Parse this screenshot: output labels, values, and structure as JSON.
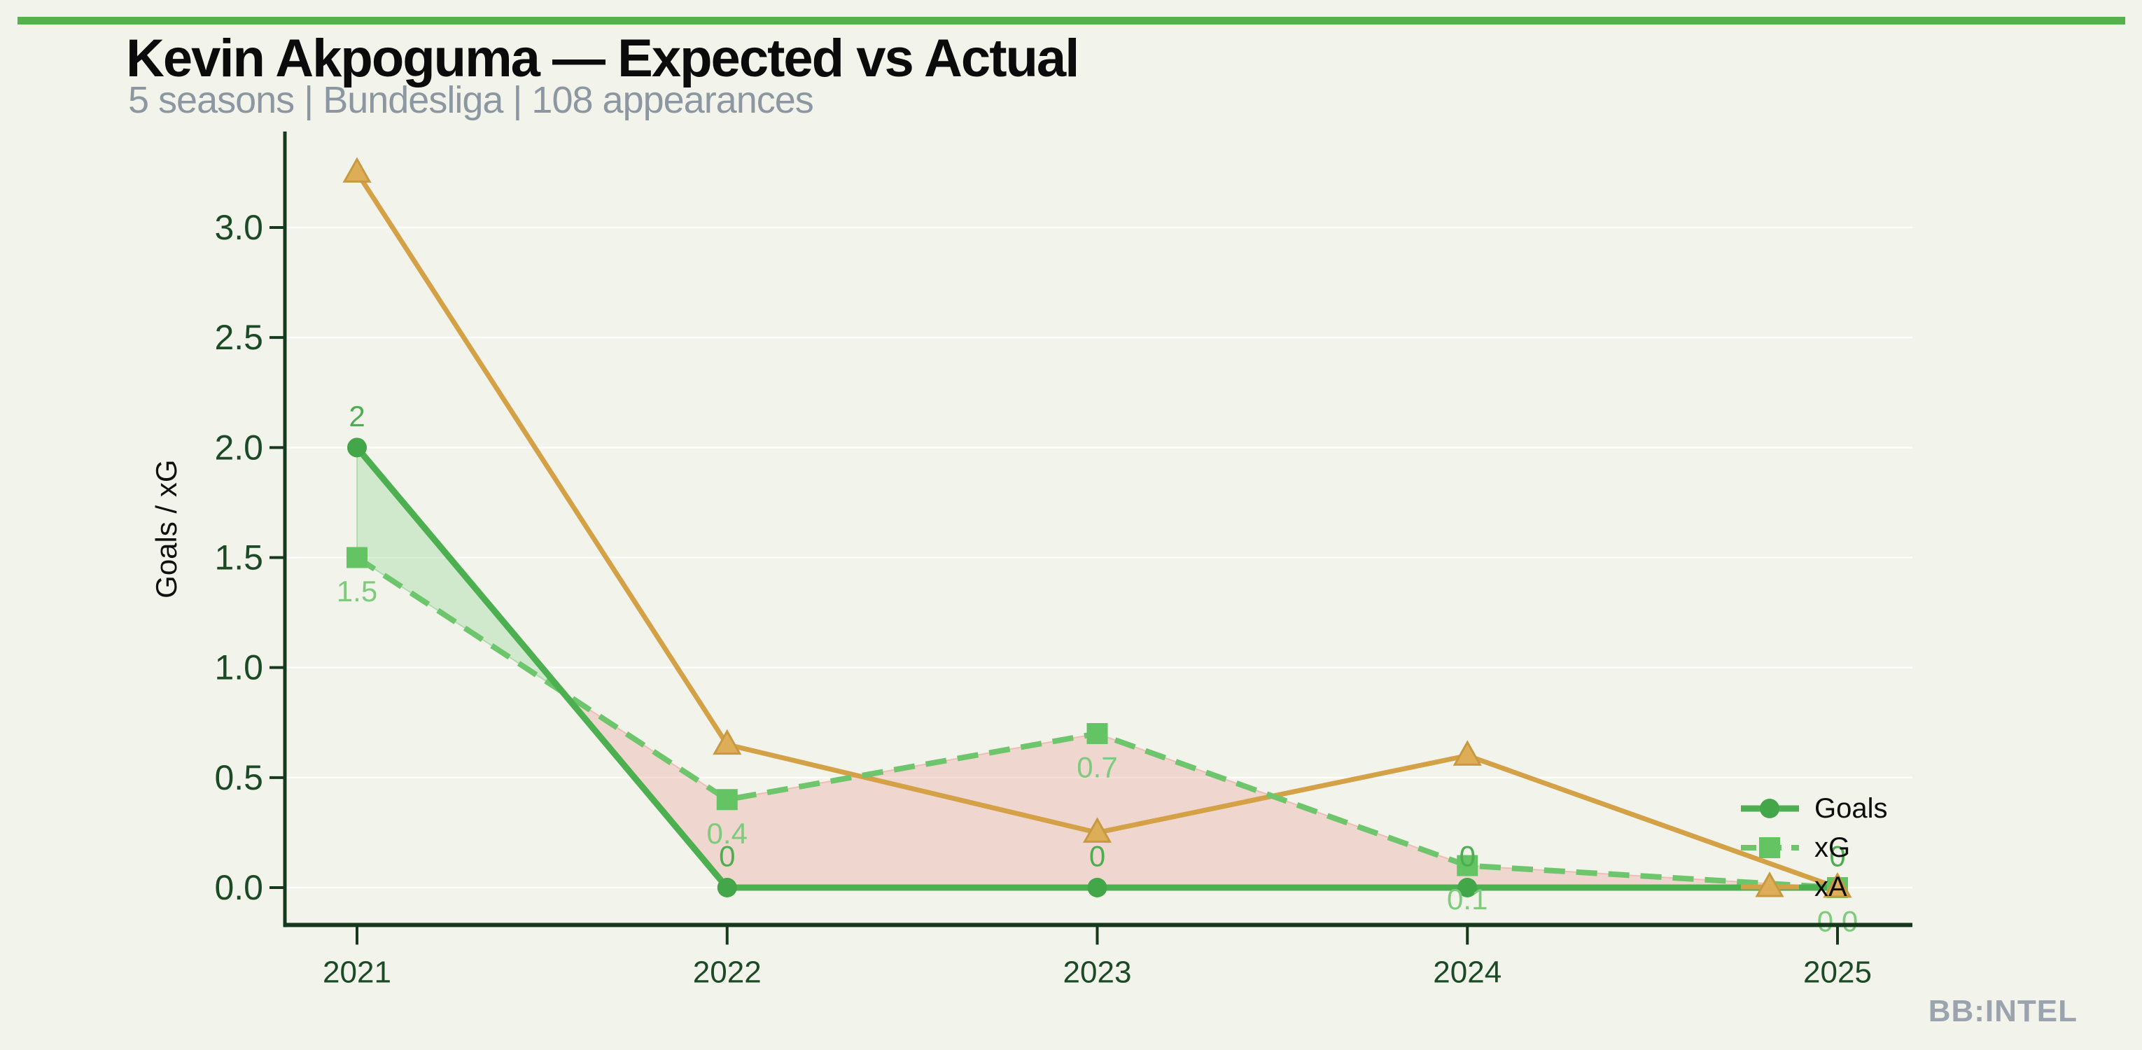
{
  "header": {
    "title": "Kevin Akpoguma — Expected vs Actual",
    "subtitle": "5 seasons | Bundesliga | 108 appearances"
  },
  "watermark": "BB:INTEL",
  "theme": {
    "background": "#f2f3eb",
    "top_bar": "#55b14c",
    "axis": "#16381c",
    "tick_label": "#1d4a26",
    "grid": "rgba(255,255,255,0.85)",
    "subtitle_color": "#8d97a2"
  },
  "chart_data": {
    "type": "line",
    "title": "Kevin Akpoguma — Expected vs Actual",
    "subtitle": "5 seasons | Bundesliga | 108 appearances",
    "x": [
      2021,
      2022,
      2023,
      2024,
      2025
    ],
    "xlabel": "",
    "ylabel": "Goals / xG",
    "yticks": [
      0.0,
      0.5,
      1.0,
      1.5,
      2.0,
      2.5,
      3.0
    ],
    "ylim": [
      -0.17,
      3.43
    ],
    "grid": true,
    "series": [
      {
        "name": "Goals",
        "values": [
          2,
          0,
          0,
          0,
          0
        ],
        "labels": [
          "2",
          "0",
          "0",
          "0",
          "0"
        ],
        "color": "#4caf50",
        "marker_color": "#43a648",
        "label_color": "#4cae50",
        "marker": "circle",
        "line_style": "solid"
      },
      {
        "name": "xG",
        "values": [
          1.5,
          0.4,
          0.7,
          0.1,
          0.0
        ],
        "labels": [
          "1.5",
          "0.4",
          "0.7",
          "0.1",
          "0.0"
        ],
        "color": "#6ec66c",
        "marker_color": "#64c463",
        "label_color": "#7ecb7d",
        "marker": "square",
        "line_style": "dashed"
      },
      {
        "name": "xA",
        "values": [
          3.25,
          0.65,
          0.25,
          0.6,
          0.0
        ],
        "labels": null,
        "color": "#d4a147",
        "marker_color": "#ddad58",
        "marker_edge": "#c79a41",
        "marker": "triangle",
        "line_style": "solid"
      }
    ],
    "diff_fill": {
      "between": [
        "Goals",
        "xG"
      ],
      "above_color": "rgba(109,198,109,0.25)",
      "above_edge": "rgba(109,198,109,0.40)",
      "below_color": "rgba(233,139,133,0.28)",
      "below_edge": "rgba(236,160,153,0.55)"
    },
    "legend": {
      "entries": [
        "Goals",
        "xG",
        "xA"
      ],
      "position": "right",
      "frame": false
    }
  }
}
